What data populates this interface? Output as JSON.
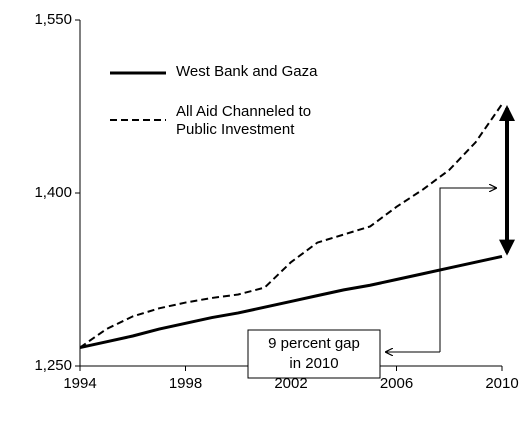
{
  "chart_data": {
    "type": "line",
    "x": [
      1994,
      1995,
      1996,
      1997,
      1998,
      1999,
      2000,
      2001,
      2002,
      2003,
      2004,
      2005,
      2006,
      2007,
      2008,
      2009,
      2010
    ],
    "series": [
      {
        "name": "West Bank and Gaza",
        "color": "#000000",
        "dash": false,
        "values": [
          1266,
          1271,
          1276,
          1282,
          1287,
          1292,
          1296,
          1301,
          1306,
          1311,
          1316,
          1320,
          1325,
          1330,
          1335,
          1340,
          1345
        ]
      },
      {
        "name": "All Aid Channeled to Public Investment",
        "color": "#000000",
        "dash": true,
        "values": [
          1266,
          1282,
          1293,
          1300,
          1305,
          1309,
          1312,
          1318,
          1340,
          1357,
          1364,
          1371,
          1388,
          1403,
          1420,
          1444,
          1477
        ]
      }
    ],
    "xlim": [
      1994,
      2010
    ],
    "xticks": [
      1994,
      1998,
      2002,
      2006,
      2010
    ],
    "ylim": [
      1250,
      1550
    ],
    "yticks": [
      {
        "value": 1250,
        "label": "1,250"
      },
      {
        "value": 1400,
        "label": "1,400"
      },
      {
        "value": 1550,
        "label": "1,550"
      }
    ],
    "grid": false,
    "annotation": [
      "9 percent gap",
      "in 2010"
    ]
  }
}
